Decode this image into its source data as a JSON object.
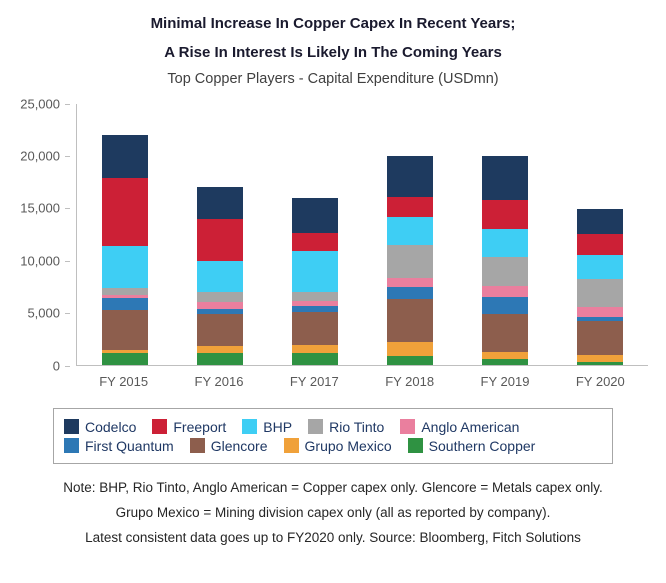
{
  "header": {
    "title_line1": "Minimal Increase In Copper Capex In Recent Years;",
    "title_line2": "A Rise In Interest Is Likely In The Coming Years",
    "subtitle": "Top Copper Players - Capital Expenditure (USDmn)"
  },
  "chart_data": {
    "type": "bar",
    "stacked": true,
    "title": "Top Copper Players - Capital Expenditure (USDmn)",
    "categories": [
      "FY 2015",
      "FY 2016",
      "FY 2017",
      "FY 2018",
      "FY 2019",
      "FY 2020"
    ],
    "series": [
      {
        "name": "Codelco",
        "color": "#1e3a5f",
        "values": [
          4100,
          3000,
          3400,
          3900,
          4200,
          2400
        ]
      },
      {
        "name": "Freeport",
        "color": "#cc2036",
        "values": [
          6500,
          4100,
          1700,
          2000,
          2800,
          2000
        ]
      },
      {
        "name": "BHP",
        "color": "#3ecef4",
        "values": [
          4100,
          2900,
          3900,
          2600,
          2700,
          2300
        ]
      },
      {
        "name": "Rio Tinto",
        "color": "#a6a6a6",
        "values": [
          600,
          1000,
          900,
          3200,
          2800,
          2700
        ]
      },
      {
        "name": "Anglo American",
        "color": "#ea7f9e",
        "values": [
          300,
          700,
          500,
          900,
          1000,
          900
        ]
      },
      {
        "name": "First Quantum",
        "color": "#2d78b5",
        "values": [
          1200,
          400,
          600,
          1100,
          1600,
          400
        ]
      },
      {
        "name": "Glencore",
        "color": "#8d5e4d",
        "values": [
          3800,
          3100,
          3100,
          4100,
          3700,
          3300
        ]
      },
      {
        "name": "Grupo Mexico",
        "color": "#f0a13a",
        "values": [
          250,
          700,
          800,
          1400,
          700,
          600
        ]
      },
      {
        "name": "Southern Copper",
        "color": "#2f9242",
        "values": [
          1150,
          1100,
          1100,
          800,
          500,
          300
        ]
      }
    ],
    "stack_order": "series listed top-of-stack first; bottom-to-top stacking is the reverse order",
    "ylim": [
      0,
      25000
    ],
    "yticks": [
      0,
      5000,
      10000,
      15000,
      20000,
      25000
    ],
    "ytick_labels": [
      "0",
      "5,000",
      "10,000",
      "15,000",
      "20,000",
      "25,000"
    ],
    "xlabel": "",
    "ylabel": "",
    "grid": false,
    "legend_position": "bottom-boxed",
    "legend_rows": [
      5,
      4
    ]
  },
  "notes": {
    "line1": "Note: BHP, Rio Tinto, Anglo American = Copper capex only. Glencore = Metals capex only.",
    "line2": "Grupo Mexico = Mining division capex only (all as reported by company).",
    "line3": "Latest consistent data goes up to FY2020 only. Source: Bloomberg, Fitch Solutions"
  }
}
